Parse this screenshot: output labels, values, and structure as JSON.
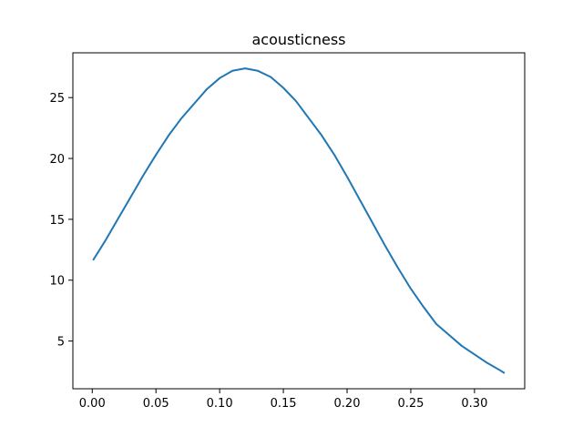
{
  "chart_data": {
    "type": "line",
    "title": "acousticness",
    "xlabel": "",
    "ylabel": "",
    "xlim": [
      -0.0152,
      0.3394
    ],
    "ylim": [
      1.08,
      28.68
    ],
    "xticks": [
      0.0,
      0.05,
      0.1,
      0.15,
      0.2,
      0.25,
      0.3
    ],
    "yticks": [
      5,
      10,
      15,
      20,
      25
    ],
    "grid": false,
    "legend": "none",
    "series": [
      {
        "color": "#1f77b4",
        "x": [
          0.001,
          0.01,
          0.02,
          0.03,
          0.04,
          0.05,
          0.06,
          0.07,
          0.08,
          0.09,
          0.1,
          0.11,
          0.12,
          0.13,
          0.14,
          0.15,
          0.16,
          0.17,
          0.18,
          0.19,
          0.2,
          0.21,
          0.22,
          0.23,
          0.24,
          0.25,
          0.26,
          0.27,
          0.28,
          0.29,
          0.3,
          0.31,
          0.32,
          0.323
        ],
        "values": [
          11.7,
          13.2,
          15.0,
          16.8,
          18.6,
          20.3,
          21.9,
          23.3,
          24.5,
          25.7,
          26.6,
          27.2,
          27.4,
          27.2,
          26.7,
          25.8,
          24.7,
          23.3,
          21.9,
          20.3,
          18.5,
          16.6,
          14.7,
          12.8,
          11.0,
          9.3,
          7.8,
          6.4,
          5.5,
          4.6,
          3.9,
          3.2,
          2.6,
          2.4
        ]
      }
    ]
  }
}
